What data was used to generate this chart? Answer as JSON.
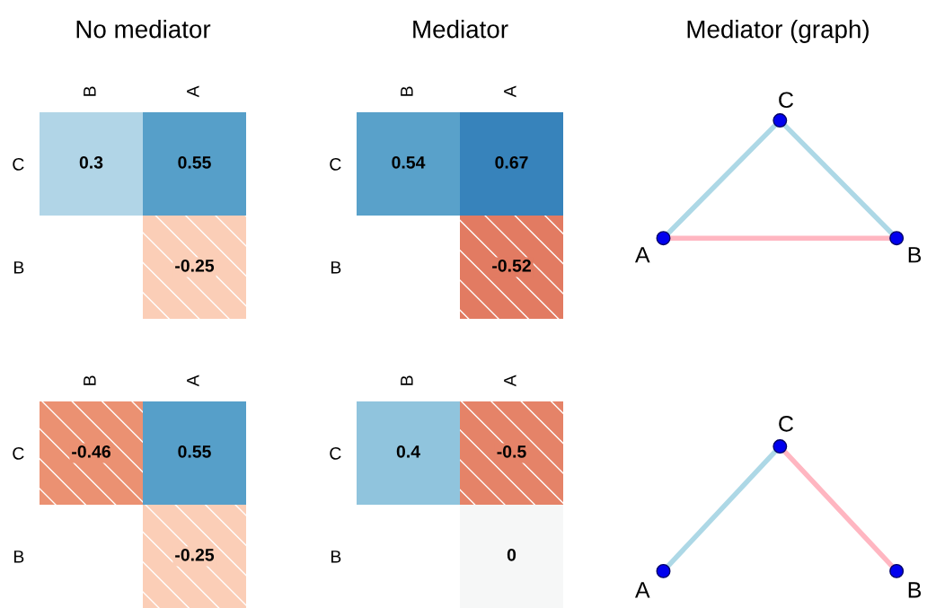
{
  "chart_data": [
    {
      "type": "heatmap",
      "title": "No mediator",
      "categories": [
        "B",
        "A"
      ],
      "y_categories": [
        "C",
        "B"
      ],
      "cells": [
        [
          0.3,
          0.55
        ],
        [
          null,
          -0.25
        ]
      ],
      "data_labels": true
    },
    {
      "type": "heatmap",
      "title": "Mediator",
      "categories": [
        "B",
        "A"
      ],
      "y_categories": [
        "C",
        "B"
      ],
      "cells": [
        [
          0.54,
          0.67
        ],
        [
          null,
          -0.52
        ]
      ],
      "data_labels": true
    },
    {
      "type": "other",
      "title": "Mediator (graph)",
      "annotations": [
        "A",
        "B",
        "C"
      ]
    },
    {
      "type": "heatmap",
      "categories": [
        "B",
        "A"
      ],
      "y_categories": [
        "C",
        "B"
      ],
      "cells": [
        [
          -0.46,
          0.55
        ],
        [
          null,
          -0.25
        ]
      ],
      "data_labels": true
    },
    {
      "type": "heatmap",
      "categories": [
        "B",
        "A"
      ],
      "y_categories": [
        "C",
        "B"
      ],
      "cells": [
        [
          0.4,
          -0.5
        ],
        [
          null,
          0
        ]
      ],
      "data_labels": true
    },
    {
      "type": "other",
      "annotations": [
        "A",
        "B",
        "C"
      ]
    }
  ]
}
